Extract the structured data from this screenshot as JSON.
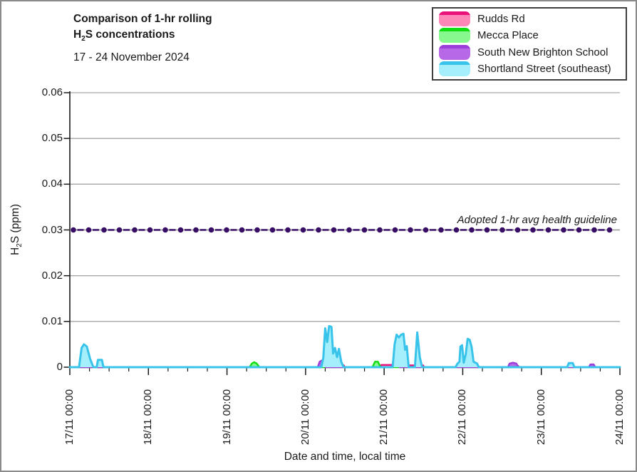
{
  "header": {
    "title_line1": "Comparison of 1-hr rolling",
    "title_line2_pre": "H",
    "title_line2_sub": "2",
    "title_line2_post": "S concentrations",
    "subtitle": "17 - 24 November 2024"
  },
  "axes": {
    "y_title_pre": "H",
    "y_title_sub": "2",
    "y_title_post": "S (ppm)",
    "x_title": "Date and time, local time",
    "y_tick_labels": [
      "0.06",
      "0.05",
      "0.04",
      "0.03",
      "0.02",
      "0.01",
      "0"
    ],
    "x_tick_labels": [
      "17/11 00:00",
      "18/11 00:00",
      "19/11 00:00",
      "20/11 00:00",
      "21/11 00:00",
      "22/11 00:00",
      "23/11 00:00",
      "24/11 00:00"
    ]
  },
  "colors": {
    "grid": "#a6a6a6",
    "axis": "#1a1a1a",
    "guideline": "#380d66",
    "guideline_base": "#9a9a9a"
  },
  "chart_data": {
    "type": "area",
    "title": "Comparison of 1-hr rolling H2S concentrations",
    "subtitle": "17 - 24 November 2024",
    "xlabel": "Date and time, local time",
    "ylabel": "H2S (ppm)",
    "ylim": [
      0,
      0.06
    ],
    "y_tick_step": 0.01,
    "grid": "horizontal gray lines at each 0.01",
    "legend_position": "top-right boxed",
    "x_axis": {
      "unit": "hours since 17/11/2024 00:00 local",
      "range": [
        0,
        168
      ],
      "major_tick_hours": 24,
      "minor_tick_hours": 6,
      "tick_labels": [
        "17/11 00:00",
        "18/11 00:00",
        "19/11 00:00",
        "20/11 00:00",
        "21/11 00:00",
        "22/11 00:00",
        "23/11 00:00",
        "24/11 00:00"
      ]
    },
    "guideline": {
      "label": "Adopted 1-hr avg health guideline",
      "value": 0.03,
      "style": "dark-purple dashed line with round markers over thin gray line"
    },
    "series": [
      {
        "name": "Rudds Rd",
        "line_color": "#e9127b",
        "fill_color": "#fd87b6",
        "points": [
          [
            0,
            0
          ],
          [
            2.8,
            0
          ],
          [
            3.1,
            0.0003
          ],
          [
            6,
            0.0003
          ],
          [
            6.3,
            0
          ],
          [
            75.8,
            0
          ],
          [
            76.1,
            0.0004
          ],
          [
            83.7,
            0.0004
          ],
          [
            84,
            0
          ],
          [
            94.8,
            0
          ],
          [
            95.1,
            0.0005
          ],
          [
            100.9,
            0.0005
          ],
          [
            103.9,
            0.0004
          ],
          [
            107.9,
            0.0004
          ],
          [
            108.2,
            0
          ],
          [
            117.8,
            0
          ],
          [
            118.1,
            0.0004
          ],
          [
            124.7,
            0.0004
          ],
          [
            125,
            0
          ],
          [
            133.9,
            0
          ],
          [
            134.2,
            0.0003
          ],
          [
            136.9,
            0.0003
          ],
          [
            137.2,
            0
          ],
          [
            151.9,
            0
          ],
          [
            152.2,
            0.0003
          ],
          [
            153.4,
            0.0003
          ],
          [
            153.7,
            0
          ],
          [
            168,
            0
          ]
        ]
      },
      {
        "name": "Mecca Place",
        "line_color": "#10dd10",
        "fill_color": "#86f88e",
        "points": [
          [
            0,
            0
          ],
          [
            54.9,
            0
          ],
          [
            55.6,
            0.0008
          ],
          [
            56.3,
            0.0011
          ],
          [
            57.1,
            0.0008
          ],
          [
            57.9,
            0
          ],
          [
            92.4,
            0
          ],
          [
            93.2,
            0.0012
          ],
          [
            94.1,
            0.0012
          ],
          [
            94.9,
            0
          ],
          [
            168,
            0
          ]
        ]
      },
      {
        "name": "South New Brighton School",
        "line_color": "#9d3ed9",
        "fill_color": "#b768e6",
        "points": [
          [
            0,
            0
          ],
          [
            75.7,
            0
          ],
          [
            76.3,
            0.0012
          ],
          [
            77.3,
            0.0016
          ],
          [
            78.1,
            0
          ],
          [
            98.2,
            0
          ],
          [
            98.7,
            0.001
          ],
          [
            100.1,
            0.0008
          ],
          [
            100.7,
            0
          ],
          [
            133.8,
            0
          ],
          [
            134.3,
            0.0008
          ],
          [
            135.3,
            0.001
          ],
          [
            136.4,
            0.0008
          ],
          [
            137,
            0
          ],
          [
            158.5,
            0
          ],
          [
            159,
            0.0006
          ],
          [
            160,
            0.0006
          ],
          [
            160.5,
            0
          ],
          [
            168,
            0
          ]
        ]
      },
      {
        "name": "Shortland Street (southeast)",
        "line_color": "#38c3ea",
        "fill_color": "#a5eefb",
        "points": [
          [
            0,
            0
          ],
          [
            2.8,
            0
          ],
          [
            3.6,
            0.0042
          ],
          [
            4.3,
            0.005
          ],
          [
            5.2,
            0.0045
          ],
          [
            6.2,
            0.0018
          ],
          [
            7.2,
            0
          ],
          [
            8.2,
            0
          ],
          [
            8.6,
            0.0016
          ],
          [
            9.8,
            0.0016
          ],
          [
            10.3,
            0
          ],
          [
            76.8,
            0
          ],
          [
            77.4,
            0.002
          ],
          [
            78,
            0.0085
          ],
          [
            78.6,
            0.0055
          ],
          [
            79.2,
            0.009
          ],
          [
            79.9,
            0.0088
          ],
          [
            80.4,
            0.003
          ],
          [
            81,
            0.0042
          ],
          [
            81.6,
            0.0022
          ],
          [
            82.2,
            0.004
          ],
          [
            82.9,
            0.0012
          ],
          [
            83.6,
            0
          ],
          [
            98.6,
            0
          ],
          [
            99.2,
            0.005
          ],
          [
            99.8,
            0.0071
          ],
          [
            100.5,
            0.0065
          ],
          [
            101.2,
            0.0071
          ],
          [
            101.9,
            0.0073
          ],
          [
            102.4,
            0.0038
          ],
          [
            102.9,
            0.0046
          ],
          [
            103.5,
            0
          ],
          [
            105.4,
            0
          ],
          [
            106.1,
            0.0076
          ],
          [
            106.9,
            0.0022
          ],
          [
            107.6,
            0
          ],
          [
            117.8,
            0
          ],
          [
            118.4,
            0.0008
          ],
          [
            119,
            0.0012
          ],
          [
            119.3,
            0.0045
          ],
          [
            119.8,
            0.0048
          ],
          [
            120.3,
            0.001
          ],
          [
            120.9,
            0.0028
          ],
          [
            121.5,
            0.0062
          ],
          [
            122.1,
            0.006
          ],
          [
            122.7,
            0.0045
          ],
          [
            123.3,
            0.0012
          ],
          [
            124.4,
            0.0008
          ],
          [
            124.9,
            0
          ],
          [
            151.9,
            0
          ],
          [
            152.4,
            0.0009
          ],
          [
            153.6,
            0.0009
          ],
          [
            154.1,
            0
          ],
          [
            168,
            0
          ]
        ]
      }
    ]
  }
}
